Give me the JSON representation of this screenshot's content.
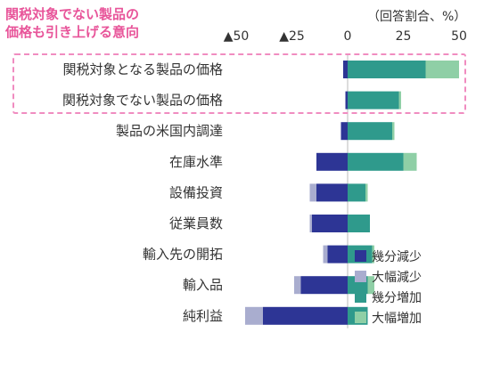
{
  "annotation": {
    "line1": "関税対象でない製品の",
    "line2": "価格も引き上げる意向"
  },
  "unit_label": "（回答割合、%）",
  "colors": {
    "slight_decrease": "#2d3595",
    "large_decrease": "#a9adcf",
    "slight_increase": "#2f9a8c",
    "large_increase": "#8fcfa6",
    "annotation": "#e8559a"
  },
  "chart_data": {
    "type": "bar",
    "orientation": "horizontal",
    "stacked": true,
    "xlim": [
      -50,
      50
    ],
    "tick_labels": [
      "▲50",
      "▲25",
      "0",
      "25",
      "50"
    ],
    "tick_values": [
      -50,
      -25,
      0,
      25,
      50
    ],
    "categories": [
      "関税対象となる製品の価格",
      "関税対象でない製品の価格",
      "製品の米国内調達",
      "在庫水準",
      "設備投資",
      "従業員数",
      "輸入先の開拓",
      "輸入品",
      "純利益"
    ],
    "series": [
      {
        "name": "幾分減少",
        "key": "slight_decrease",
        "values": [
          2,
          1,
          3,
          14,
          14,
          16,
          9,
          21,
          38
        ]
      },
      {
        "name": "大幅減少",
        "key": "large_decrease",
        "values": [
          0,
          0,
          0,
          0,
          3,
          1,
          2,
          3,
          8
        ]
      },
      {
        "name": "幾分増加",
        "key": "slight_increase",
        "values": [
          35,
          23,
          20,
          25,
          8,
          10,
          11,
          9,
          9
        ]
      },
      {
        "name": "大幅増加",
        "key": "large_increase",
        "values": [
          15,
          1,
          1,
          6,
          1,
          0,
          1,
          3,
          0
        ]
      }
    ],
    "highlighted_categories": [
      0,
      1
    ],
    "legend_position": "bottom-right"
  }
}
